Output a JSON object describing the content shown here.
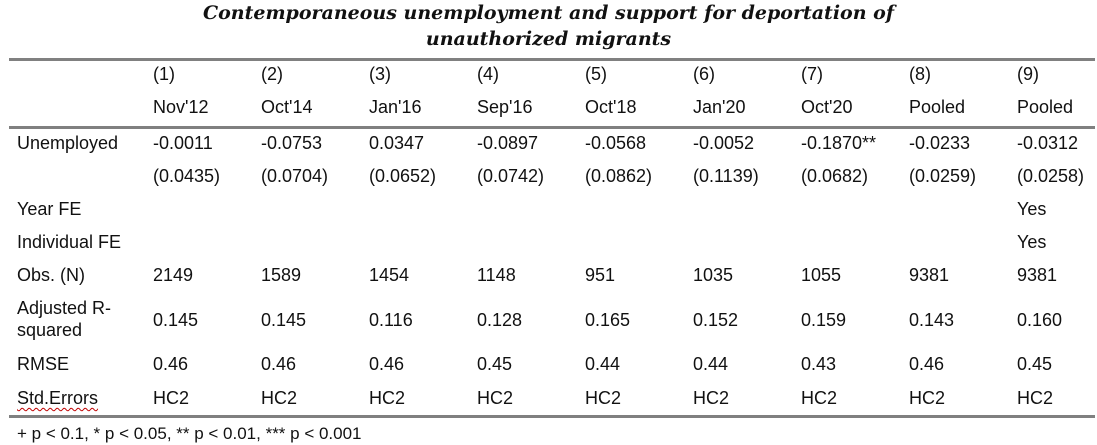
{
  "title": {
    "line1": "Contemporaneous unemployment and support for deportation of",
    "line2": "unauthorized migrants"
  },
  "columns": [
    {
      "num": "(1)",
      "wave": "Nov'12"
    },
    {
      "num": "(2)",
      "wave": "Oct'14"
    },
    {
      "num": "(3)",
      "wave": "Jan'16"
    },
    {
      "num": "(4)",
      "wave": "Sep'16"
    },
    {
      "num": "(5)",
      "wave": "Oct'18"
    },
    {
      "num": "(6)",
      "wave": "Jan'20"
    },
    {
      "num": "(7)",
      "wave": "Oct'20"
    },
    {
      "num": "(8)",
      "wave": "Pooled"
    },
    {
      "num": "(9)",
      "wave": "Pooled"
    }
  ],
  "rows": {
    "unemployed": {
      "label": "Unemployed",
      "values": [
        "-0.0011",
        "-0.0753",
        "0.0347",
        "-0.0897",
        "-0.0568",
        "-0.0052",
        "-0.1870**",
        "-0.0233",
        "-0.0312"
      ]
    },
    "se": {
      "values": [
        "(0.0435)",
        "(0.0704)",
        "(0.0652)",
        "(0.0742)",
        "(0.0862)",
        "(0.1139)",
        "(0.0682)",
        "(0.0259)",
        "(0.0258)"
      ]
    },
    "year_fe": {
      "label": "Year FE",
      "values": [
        "",
        "",
        "",
        "",
        "",
        "",
        "",
        "",
        "Yes"
      ]
    },
    "individual_fe": {
      "label": "Individual FE",
      "values": [
        "",
        "",
        "",
        "",
        "",
        "",
        "",
        "",
        "Yes"
      ]
    },
    "obs": {
      "label": "Obs. (N)",
      "values": [
        "2149",
        "1589",
        "1454",
        "1148",
        "951",
        "1035",
        "1055",
        "9381",
        "9381"
      ]
    },
    "r2": {
      "label_line1": "Adjusted R-",
      "label_line2": "squared",
      "values": [
        "0.145",
        "0.145",
        "0.116",
        "0.128",
        "0.165",
        "0.152",
        "0.159",
        "0.143",
        "0.160"
      ]
    },
    "rmse": {
      "label": "RMSE",
      "values": [
        "0.46",
        "0.46",
        "0.46",
        "0.45",
        "0.44",
        "0.44",
        "0.43",
        "0.46",
        "0.45"
      ]
    },
    "stderr": {
      "label": "Std.Errors",
      "values": [
        "HC2",
        "HC2",
        "HC2",
        "HC2",
        "HC2",
        "HC2",
        "HC2",
        "HC2",
        "HC2"
      ]
    }
  },
  "footnote": "+ p < 0.1, * p < 0.05, ** p < 0.01, *** p < 0.001"
}
